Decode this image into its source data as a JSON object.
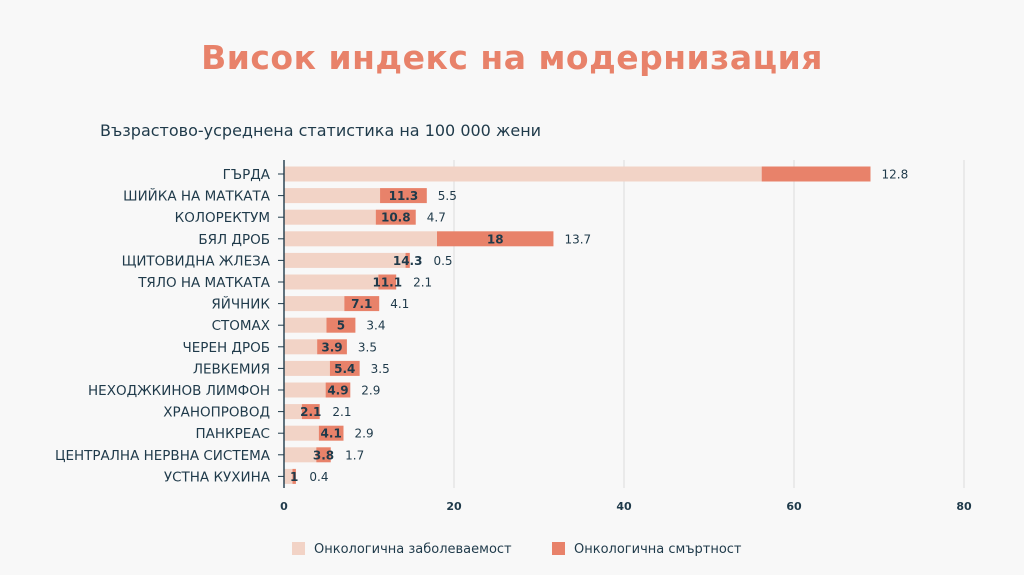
{
  "title": "Висок индекс на модернизация",
  "subtitle": "Възрастово-усреднена статистика на 100 000 жени",
  "colors": {
    "incidence": "#f2d3c6",
    "mortality": "#e8826a",
    "title": "#e8826a",
    "text": "#1f3a4a",
    "grid": "#dcdcdc"
  },
  "chart_data": {
    "type": "bar",
    "orientation": "horizontal",
    "stacked": true,
    "categories": [
      "ГЪРДА",
      "ШИЙКА НА МАТКАТА",
      "КОЛОРЕКТУМ",
      "БЯЛ ДРОБ",
      "ЩИТОВИДНА ЖЛЕЗА",
      "ТЯЛО НА МАТКАТА",
      "ЯЙЧНИК",
      "СТОМАХ",
      "ЧЕРЕН ДРОБ",
      "ЛЕВКЕМИЯ",
      "НЕХОДЖКИНОВ ЛИМФОН",
      "ХРАНОПРОВОД",
      "ПАНКРЕАС",
      "ЦЕНТРАЛНА НЕРВНА СИСТЕМА",
      "УСТНА КУХИНА"
    ],
    "series": [
      {
        "name": "Онкологична заболеваемост",
        "values": [
          56.2,
          11.3,
          10.8,
          18,
          14.3,
          11.1,
          7.1,
          5,
          3.9,
          5.4,
          4.9,
          2.1,
          4.1,
          3.8,
          1
        ],
        "labels": [
          "",
          "11.3",
          "10.8",
          "18",
          "14.3",
          "11.1",
          "7.1",
          "5",
          "3.9",
          "5.4",
          "4.9",
          "2.1",
          "4.1",
          "3.8",
          "1"
        ]
      },
      {
        "name": "Онкологична смъртност",
        "values": [
          12.8,
          5.5,
          4.7,
          13.7,
          0.5,
          2.1,
          4.1,
          3.4,
          3.5,
          3.5,
          2.9,
          2.1,
          2.9,
          1.7,
          0.4
        ],
        "labels": [
          "12.8",
          "5.5",
          "4.7",
          "13.7",
          "0.5",
          "2.1",
          "4.1",
          "3.4",
          "3.5",
          "3.5",
          "2.9",
          "2.1",
          "2.9",
          "1.7",
          "0.4"
        ]
      }
    ],
    "xlim": [
      0,
      80
    ],
    "xticks": [
      "0",
      "20",
      "40",
      "60",
      "80"
    ],
    "grid": true,
    "legend_position": "bottom"
  }
}
